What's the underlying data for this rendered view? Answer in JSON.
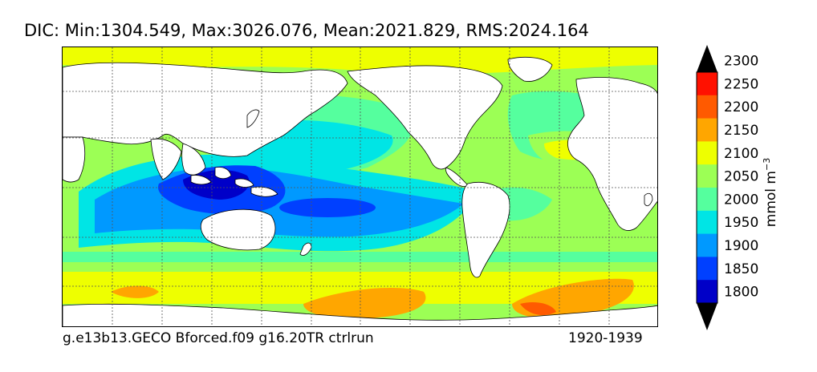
{
  "title": "DIC: Min:1304.549, Max:3026.076, Mean:2021.829, RMS:2024.164",
  "footer": {
    "left": "g.e13b13.GECO Bforced.f09 g16.20TR ctrlrun",
    "right": "1920-1939"
  },
  "map": {
    "variable": "DIC",
    "statistics": {
      "min": 1304.549,
      "max": 3026.076,
      "mean": 2021.829,
      "rms": 2024.164
    },
    "gridlines": "dotted",
    "land_color": "#ffffff",
    "coastline_color": "#000000"
  },
  "colorbar": {
    "units": "mmol m",
    "units_exponent": "−3",
    "orientation": "vertical",
    "extend": "both",
    "ticks": [
      "1800",
      "1850",
      "1900",
      "1950",
      "2000",
      "2050",
      "2100",
      "2150",
      "2200",
      "2250",
      "2300"
    ],
    "levels": [
      {
        "range": "<1800",
        "color": "#00007f"
      },
      {
        "range": "1800-1850",
        "color": "#0000c8"
      },
      {
        "range": "1850-1900",
        "color": "#0040ff"
      },
      {
        "range": "1900-1950",
        "color": "#0099ff"
      },
      {
        "range": "1950-2000",
        "color": "#00e5e5"
      },
      {
        "range": "2000-2050",
        "color": "#55ff9e"
      },
      {
        "range": "2050-2100",
        "color": "#9cff55"
      },
      {
        "range": "2100-2150",
        "color": "#eeff00"
      },
      {
        "range": "2150-2200",
        "color": "#ffa600"
      },
      {
        "range": "2200-2250",
        "color": "#ff5a00"
      },
      {
        "range": "2250-2300",
        "color": "#ff1100"
      },
      {
        "range": ">2300",
        "color": "#7f0000"
      }
    ]
  }
}
